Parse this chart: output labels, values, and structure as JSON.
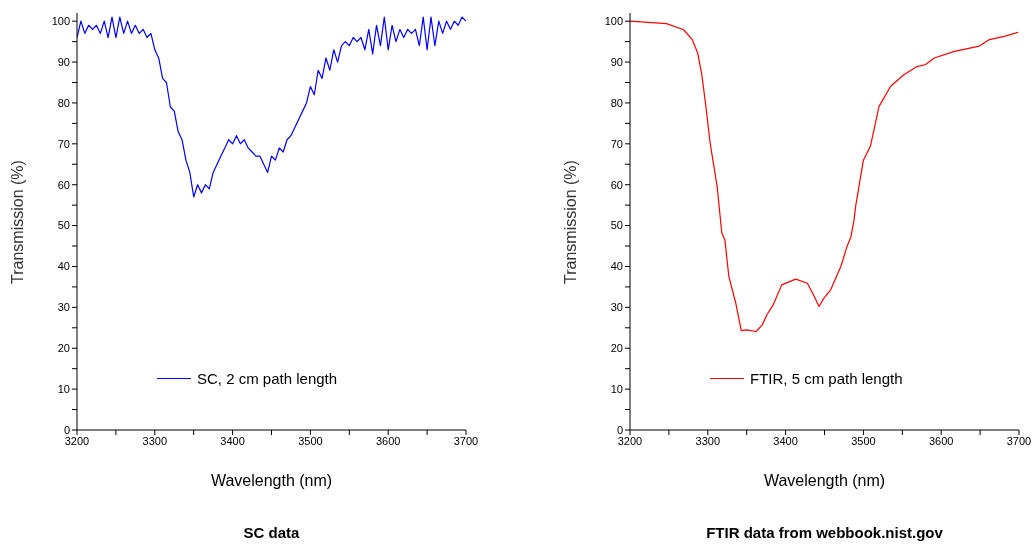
{
  "chart_data": [
    {
      "type": "line",
      "title": "SC data",
      "xlabel": "Wavelength (nm)",
      "ylabel": "Transmission (%)",
      "legend": "bottom left",
      "xlim": [
        3200,
        3700
      ],
      "xticks": [
        3200,
        {
          "value": 3250,
          "label": null
        },
        3300,
        {
          "value": 3350,
          "label": null
        },
        3400,
        {
          "value": 3450,
          "label": null
        },
        3500,
        {
          "value": 3550,
          "label": null
        },
        3600,
        {
          "value": 3650,
          "label": null
        },
        3700
      ],
      "ylim": [
        0,
        102
      ],
      "yticks": [
        0,
        {
          "value": 5,
          "label": null
        },
        10,
        {
          "value": 15,
          "label": null
        },
        20,
        {
          "value": 25,
          "label": null
        },
        30,
        {
          "value": 35,
          "label": null
        },
        40,
        {
          "value": 45,
          "label": null
        },
        50,
        {
          "value": 55,
          "label": null
        },
        60,
        {
          "value": 65,
          "label": null
        },
        70,
        {
          "value": 75,
          "label": null
        },
        80,
        {
          "value": 85,
          "label": null
        },
        90,
        {
          "value": 95,
          "label": null
        },
        100
      ],
      "x": [
        3200,
        3205,
        3210,
        3215,
        3220,
        3225,
        3230,
        3235,
        3240,
        3245,
        3250,
        3255,
        3260,
        3265,
        3270,
        3275,
        3280,
        3285,
        3290,
        3295,
        3300,
        3305,
        3310,
        3315,
        3320,
        3325,
        3330,
        3335,
        3340,
        3345,
        3350,
        3355,
        3360,
        3365,
        3370,
        3375,
        3380,
        3385,
        3390,
        3395,
        3400,
        3405,
        3410,
        3415,
        3420,
        3425,
        3430,
        3435,
        3440,
        3445,
        3450,
        3455,
        3460,
        3465,
        3470,
        3475,
        3480,
        3485,
        3490,
        3495,
        3500,
        3505,
        3510,
        3515,
        3520,
        3525,
        3530,
        3535,
        3540,
        3545,
        3550,
        3555,
        3560,
        3565,
        3570,
        3575,
        3580,
        3585,
        3590,
        3595,
        3600,
        3605,
        3610,
        3615,
        3620,
        3625,
        3630,
        3635,
        3640,
        3645,
        3650,
        3655,
        3660,
        3665,
        3670,
        3675,
        3680,
        3685,
        3690,
        3695,
        3700
      ],
      "series": [
        {
          "name": "SC, 2 cm path length",
          "color": "#0000ff",
          "values": [
            96,
            100,
            97,
            99,
            98,
            99,
            97,
            100,
            96,
            101,
            96,
            101,
            97,
            100,
            97,
            99,
            97,
            98,
            96,
            97,
            93,
            91,
            86,
            85,
            79,
            78,
            73,
            71,
            66,
            63,
            57,
            60,
            58,
            60,
            59,
            63,
            65,
            67,
            69,
            71,
            70,
            72,
            70,
            71,
            69,
            68,
            67,
            67,
            65,
            63,
            67,
            66,
            69,
            68,
            71,
            72,
            74,
            76,
            78,
            80,
            84,
            82,
            88,
            86,
            91,
            88,
            93,
            90,
            94,
            95,
            94,
            96,
            95,
            96,
            93,
            98,
            92,
            99,
            94,
            101,
            93,
            99,
            95,
            98,
            96,
            98,
            97,
            98,
            94,
            101,
            93,
            101,
            94,
            100,
            97,
            100,
            98,
            100,
            99,
            101,
            100
          ]
        }
      ]
    },
    {
      "type": "line",
      "title": "FTIR data from webbook.nist.gov",
      "xlabel": "Wavelength (nm)",
      "ylabel": "Transmission (%)",
      "legend": "bottom left",
      "xlim": [
        3200,
        3700
      ],
      "xticks": [
        3200,
        {
          "value": 3250,
          "label": null
        },
        3300,
        {
          "value": 3350,
          "label": null
        },
        3400,
        {
          "value": 3450,
          "label": null
        },
        3500,
        {
          "value": 3550,
          "label": null
        },
        3600,
        {
          "value": 3650,
          "label": null
        },
        3700
      ],
      "ylim": [
        0,
        102
      ],
      "yticks": [
        0,
        {
          "value": 5,
          "label": null
        },
        10,
        {
          "value": 15,
          "label": null
        },
        20,
        {
          "value": 25,
          "label": null
        },
        30,
        {
          "value": 35,
          "label": null
        },
        40,
        {
          "value": 45,
          "label": null
        },
        50,
        {
          "value": 55,
          "label": null
        },
        60,
        {
          "value": 65,
          "label": null
        },
        70,
        {
          "value": 75,
          "label": null
        },
        80,
        {
          "value": 85,
          "label": null
        },
        90,
        {
          "value": 95,
          "label": null
        },
        100
      ],
      "x": [
        3200,
        3247,
        3269,
        3280,
        3287,
        3292,
        3297,
        3303,
        3312,
        3318,
        3322,
        3327,
        3336,
        3343,
        3350,
        3362,
        3370,
        3376,
        3384,
        3395,
        3413,
        3428,
        3437,
        3443,
        3449,
        3458,
        3471,
        3479,
        3484,
        3488,
        3490,
        3500,
        3509,
        3520,
        3535,
        3552,
        3569,
        3580,
        3591,
        3617,
        3649,
        3662,
        3681,
        3699
      ],
      "series": [
        {
          "name": "FTIR, 5 cm path length",
          "color": "#ff0000",
          "values": [
            100,
            99.4,
            97.9,
            95.5,
            92.2,
            87.3,
            80,
            70.2,
            59.6,
            48.2,
            46.5,
            37.6,
            31,
            24.3,
            24.5,
            24.1,
            25.7,
            28.2,
            30.6,
            35.5,
            36.9,
            35.9,
            32.6,
            30.2,
            32.2,
            34.3,
            40,
            44.9,
            47.3,
            51.4,
            54.7,
            66,
            69.4,
            79.1,
            84.1,
            86.9,
            88.9,
            89.4,
            91,
            92.6,
            93.9,
            95.5,
            96.3,
            97.3
          ]
        }
      ]
    }
  ]
}
